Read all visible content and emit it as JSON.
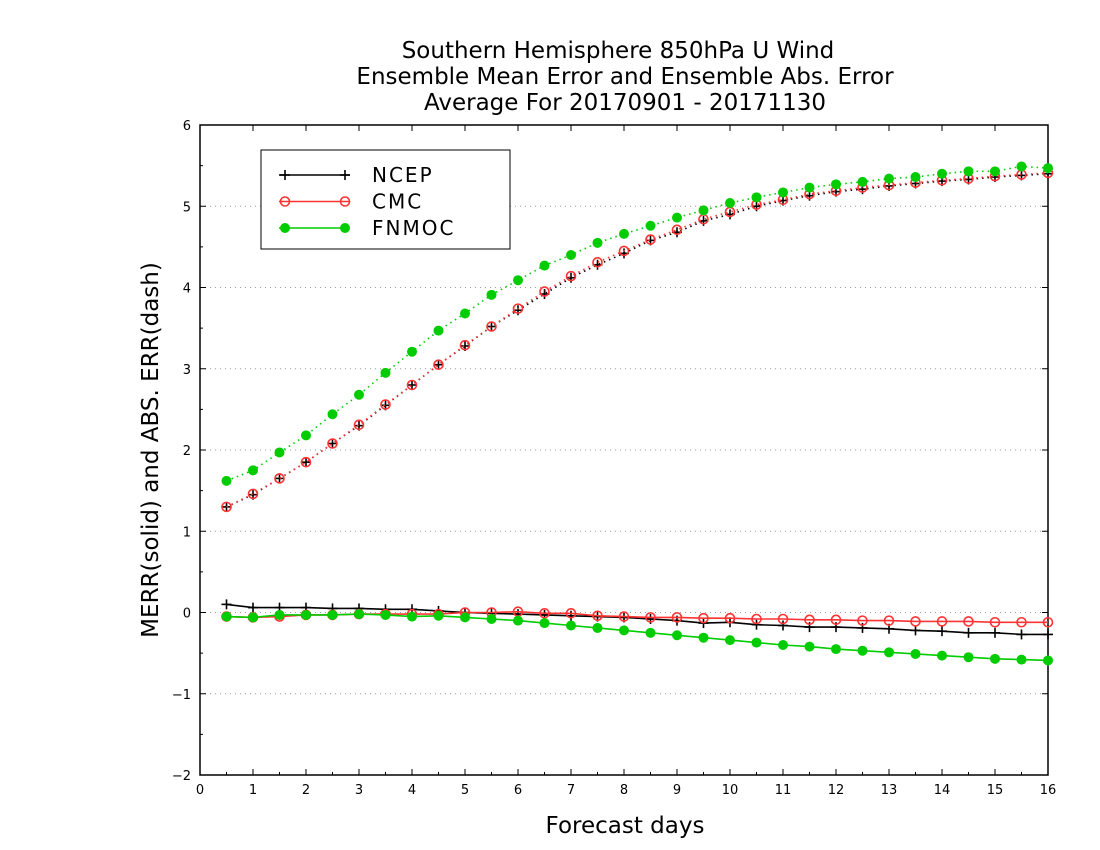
{
  "chart_data": {
    "type": "line",
    "title": [
      "Southern Hemisphere 850hPa U Wind",
      "Ensemble Mean Error and Ensemble Abs. Error",
      "Average For 20170901 - 20171130"
    ],
    "xlabel": "Forecast days",
    "ylabel": "MERR(solid) and ABS. ERR(dash)",
    "xlim": [
      0,
      16
    ],
    "ylim": [
      -2,
      6
    ],
    "xticks": [
      "0",
      "1",
      "2",
      "3",
      "4",
      "5",
      "6",
      "7",
      "8",
      "9",
      "10",
      "11",
      "12",
      "13",
      "14",
      "15",
      "16"
    ],
    "yticks": [
      "−2",
      "−1",
      "0",
      "1",
      "2",
      "3",
      "4",
      "5",
      "6"
    ],
    "grid": "horizontal dotted",
    "legend_position": "top-left",
    "x": [
      0.5,
      1,
      1.5,
      2,
      2.5,
      3,
      3.5,
      4,
      4.5,
      5,
      5.5,
      6,
      6.5,
      7,
      7.5,
      8,
      8.5,
      9,
      9.5,
      10,
      10.5,
      11,
      11.5,
      12,
      12.5,
      13,
      13.5,
      14,
      14.5,
      15,
      15.5,
      16
    ],
    "series": [
      {
        "name": "NCEP",
        "color": "#000000",
        "marker": "plus",
        "kind": "mean_error",
        "values": [
          0.1,
          0.06,
          0.06,
          0.06,
          0.05,
          0.05,
          0.04,
          0.04,
          0.02,
          0.0,
          -0.01,
          -0.02,
          -0.03,
          -0.04,
          -0.05,
          -0.06,
          -0.08,
          -0.1,
          -0.13,
          -0.12,
          -0.15,
          -0.16,
          -0.18,
          -0.18,
          -0.19,
          -0.2,
          -0.22,
          -0.23,
          -0.25,
          -0.25,
          -0.27,
          -0.27
        ]
      },
      {
        "name": "CMC",
        "color": "#ff3333",
        "marker": "open-circle",
        "kind": "mean_error",
        "values": [
          -0.05,
          -0.06,
          -0.05,
          -0.03,
          -0.03,
          -0.02,
          -0.02,
          -0.02,
          -0.02,
          0.0,
          0.0,
          0.01,
          -0.01,
          -0.01,
          -0.04,
          -0.05,
          -0.06,
          -0.06,
          -0.07,
          -0.07,
          -0.08,
          -0.08,
          -0.09,
          -0.09,
          -0.1,
          -0.1,
          -0.11,
          -0.11,
          -0.11,
          -0.12,
          -0.12,
          -0.12
        ]
      },
      {
        "name": "FNMOC",
        "color": "#00cc00",
        "marker": "filled-circle",
        "kind": "mean_error",
        "values": [
          -0.05,
          -0.06,
          -0.03,
          -0.03,
          -0.03,
          -0.02,
          -0.03,
          -0.05,
          -0.04,
          -0.06,
          -0.08,
          -0.1,
          -0.13,
          -0.16,
          -0.19,
          -0.22,
          -0.25,
          -0.28,
          -0.31,
          -0.34,
          -0.37,
          -0.4,
          -0.42,
          -0.45,
          -0.47,
          -0.49,
          -0.51,
          -0.53,
          -0.55,
          -0.57,
          -0.58,
          -0.59
        ]
      },
      {
        "name": "NCEP",
        "color": "#000000",
        "marker": "plus",
        "kind": "abs_error",
        "values": [
          1.3,
          1.45,
          1.65,
          1.85,
          2.08,
          2.3,
          2.55,
          2.8,
          3.05,
          3.28,
          3.52,
          3.72,
          3.92,
          4.12,
          4.28,
          4.42,
          4.58,
          4.68,
          4.82,
          4.9,
          5.0,
          5.07,
          5.13,
          5.18,
          5.21,
          5.25,
          5.28,
          5.31,
          5.33,
          5.36,
          5.38,
          5.4
        ]
      },
      {
        "name": "CMC",
        "color": "#ff3333",
        "marker": "open-circle",
        "kind": "abs_error",
        "values": [
          1.3,
          1.46,
          1.65,
          1.85,
          2.08,
          2.31,
          2.56,
          2.8,
          3.05,
          3.29,
          3.52,
          3.74,
          3.95,
          4.14,
          4.31,
          4.45,
          4.59,
          4.71,
          4.84,
          4.93,
          5.02,
          5.08,
          5.15,
          5.19,
          5.23,
          5.26,
          5.29,
          5.32,
          5.34,
          5.37,
          5.39,
          5.41
        ]
      },
      {
        "name": "FNMOC",
        "color": "#00cc00",
        "marker": "filled-circle",
        "kind": "abs_error",
        "values": [
          1.62,
          1.75,
          1.97,
          2.18,
          2.44,
          2.68,
          2.95,
          3.21,
          3.47,
          3.68,
          3.91,
          4.09,
          4.27,
          4.4,
          4.55,
          4.66,
          4.76,
          4.86,
          4.95,
          5.04,
          5.11,
          5.17,
          5.23,
          5.27,
          5.3,
          5.34,
          5.36,
          5.4,
          5.43,
          5.43,
          5.49,
          5.47
        ]
      }
    ]
  }
}
